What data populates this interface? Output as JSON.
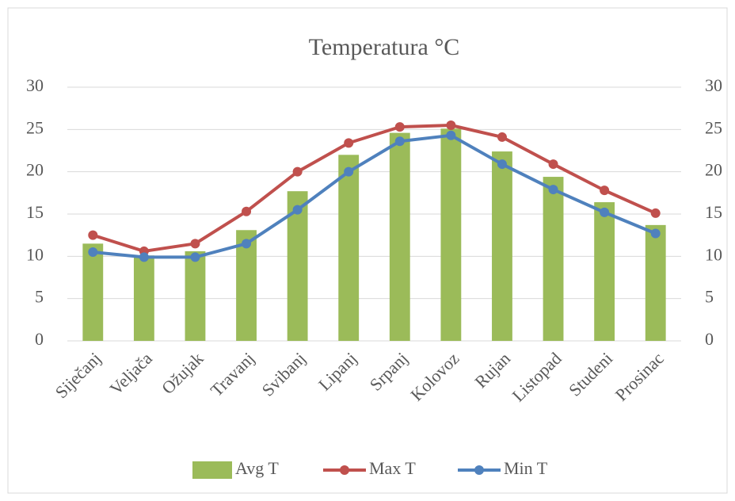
{
  "chart_data": {
    "type": "bar_line",
    "title": "Temperatura °C",
    "categories": [
      "Siječanj",
      "Veljača",
      "Ožujak",
      "Travanj",
      "Svibanj",
      "Lipanj",
      "Srpanj",
      "Kolovoz",
      "Rujan",
      "Listopad",
      "Studeni",
      "Prosinac"
    ],
    "series": [
      {
        "name": "Avg T",
        "type": "bar",
        "color": "#9bbb59",
        "values": [
          11.5,
          10.1,
          10.6,
          13.1,
          17.7,
          22.0,
          24.6,
          25.1,
          22.4,
          19.4,
          16.4,
          13.7
        ]
      },
      {
        "name": "Max T",
        "type": "line",
        "axis": "y2",
        "color": "#c0504d",
        "values": [
          12.5,
          10.6,
          11.5,
          15.3,
          20.0,
          23.4,
          25.3,
          25.5,
          24.1,
          20.9,
          17.8,
          15.1
        ]
      },
      {
        "name": "Min T",
        "type": "line",
        "axis": "y2",
        "color": "#4f81bd",
        "values": [
          10.5,
          9.9,
          9.9,
          11.5,
          15.5,
          20.0,
          23.6,
          24.3,
          20.9,
          17.9,
          15.2,
          12.7
        ]
      }
    ],
    "ylim": [
      0,
      30
    ],
    "yticks": [
      0,
      5,
      10,
      15,
      20,
      25,
      30
    ],
    "y2lim": [
      0,
      30
    ],
    "y2ticks": [
      0,
      5,
      10,
      15,
      20,
      25,
      30
    ],
    "grid": true,
    "legend": "bottom"
  }
}
